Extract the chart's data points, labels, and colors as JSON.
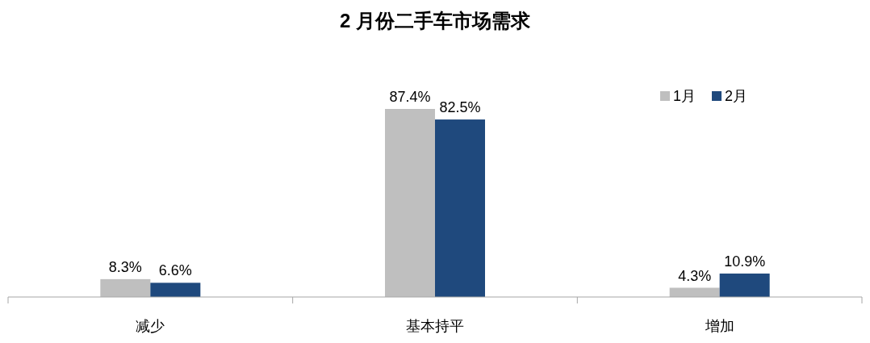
{
  "chart_data": {
    "type": "bar",
    "title": "2 月份二手车市场需求",
    "categories": [
      "减少",
      "基本持平",
      "增加"
    ],
    "legend": "top right",
    "series": [
      {
        "name": "1月",
        "color": "#bfbfbf",
        "values": [
          8.3,
          87.4,
          4.3
        ],
        "value_labels": [
          "8.3%",
          "87.4%",
          "4.3%"
        ]
      },
      {
        "name": "2月",
        "color": "#1f497d",
        "values": [
          6.6,
          82.5,
          10.9
        ],
        "value_labels": [
          "6.6%",
          "82.5%",
          "10.9%"
        ]
      }
    ]
  }
}
